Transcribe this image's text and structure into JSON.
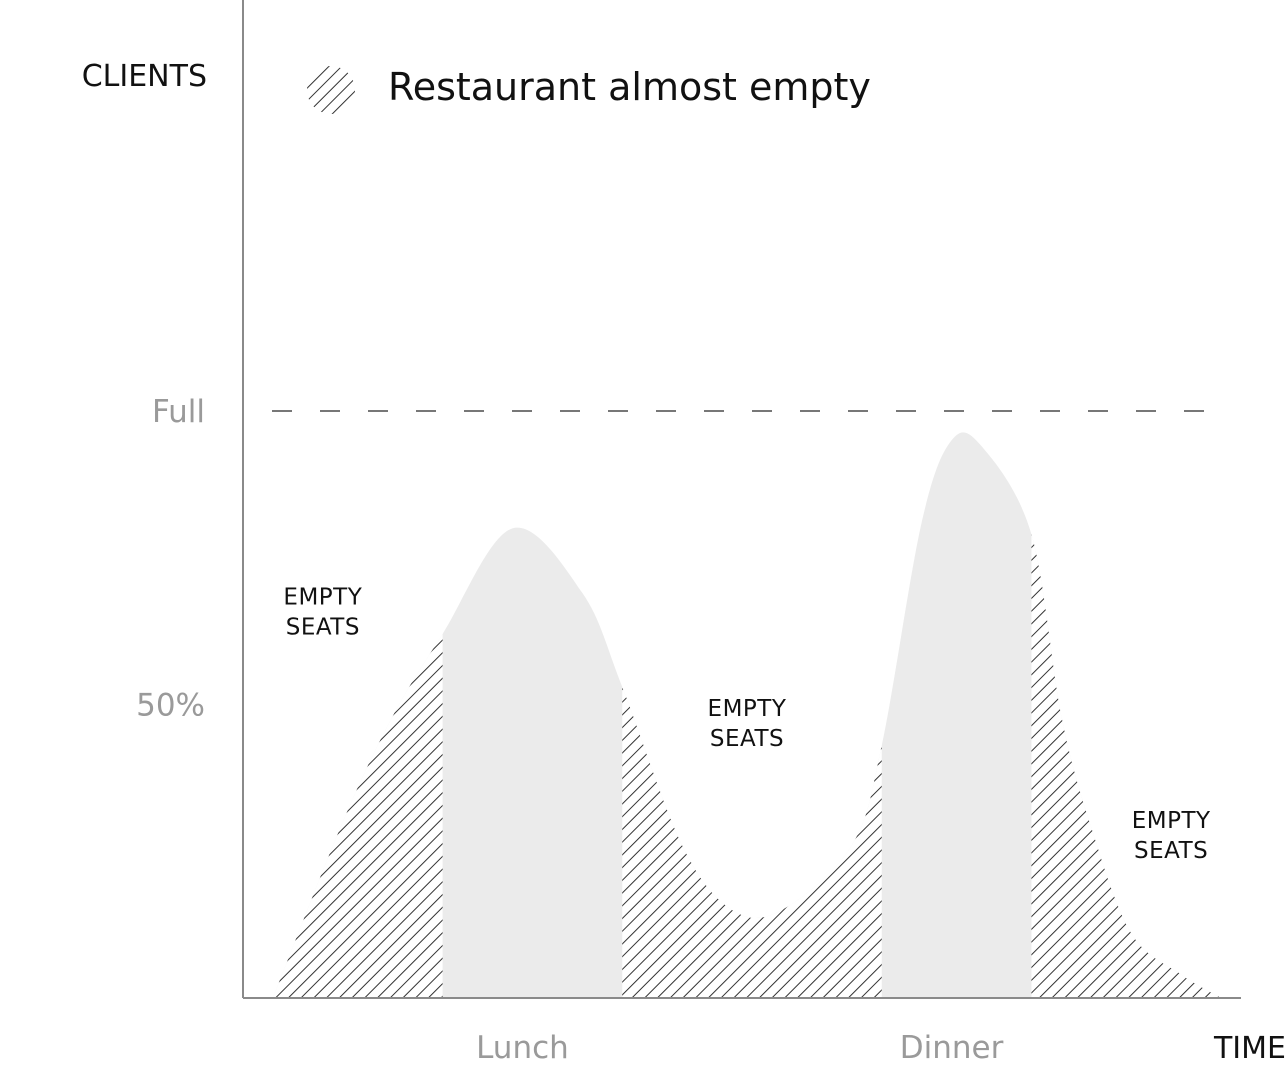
{
  "colors": {
    "curve_fill": "#ebebeb",
    "hatch": "#333333",
    "axis": "#8a8a8a",
    "reference_line": "#777777",
    "tick_text": "#9a9a9a",
    "text": "#111111"
  },
  "chart_data": {
    "type": "area",
    "title": "",
    "ylabel": "CLIENTS",
    "xlabel": "TIME",
    "y_ticks": [
      {
        "label": "Full",
        "value": 100
      },
      {
        "label": "50%",
        "value": 50
      }
    ],
    "x_ticks": [
      {
        "label": "Lunch",
        "value": 2.8
      },
      {
        "label": "Dinner",
        "value": 7.1
      }
    ],
    "ylim": [
      0,
      170
    ],
    "xlim": [
      0,
      10
    ],
    "reference_line": {
      "label": "Full",
      "value": 100,
      "style": "dashed"
    },
    "series": [
      {
        "x": [
          0.3,
          1.0,
          1.5,
          2.0,
          2.7,
          3.4,
          3.8,
          4.4,
          4.9,
          5.4,
          6.1,
          6.4,
          6.8,
          7.1,
          7.4,
          7.9,
          8.2,
          8.5,
          8.9,
          9.4,
          9.8
        ],
        "y": [
          0,
          30,
          48,
          62,
          80,
          69,
          53,
          26,
          15,
          15,
          26,
          43,
          81,
          95,
          94,
          79,
          48,
          29,
          11,
          4,
          0
        ]
      }
    ],
    "hatched_ranges": [
      [
        0.3,
        2.0
      ],
      [
        3.8,
        6.4
      ],
      [
        7.9,
        9.8
      ]
    ],
    "legend": {
      "position": "top-left",
      "entries": [
        {
          "label": "Restaurant almost empty",
          "pattern": "hatched"
        }
      ]
    },
    "annotations": [
      {
        "lines": [
          "EMPTY",
          "SEATS"
        ],
        "x": 0.8,
        "y": 67
      },
      {
        "lines": [
          "EMPTY",
          "SEATS"
        ],
        "x": 5.05,
        "y": 48
      },
      {
        "lines": [
          "EMPTY",
          "SEATS"
        ],
        "x": 9.3,
        "y": 29
      }
    ],
    "grid": false
  }
}
